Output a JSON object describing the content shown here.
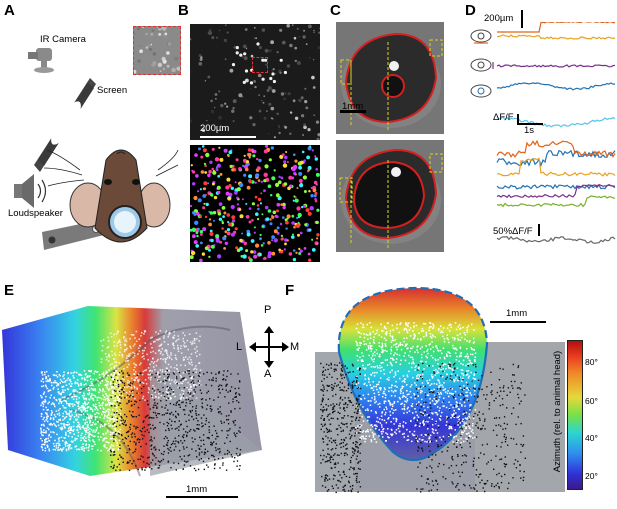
{
  "panels": {
    "A": "A",
    "B": "B",
    "C": "C",
    "D": "D",
    "E": "E",
    "F": "F"
  },
  "panel_a": {
    "ir_camera": "IR Camera",
    "screen": "Screen",
    "loudspeaker": "Loudspeaker"
  },
  "panel_b": {
    "scale": "200µm"
  },
  "panel_c": {
    "scale": "1mm"
  },
  "panel_d": {
    "scale_pos": "200µm",
    "scale_dff": "ΔF/F",
    "scale_time": "1s",
    "scale_50": "50%ΔF/F"
  },
  "panel_e": {
    "scale": "1mm"
  },
  "compass": {
    "p": "P",
    "a": "A",
    "l": "L",
    "m": "M"
  },
  "panel_f": {
    "scale": "1mm"
  },
  "colorbar": {
    "label": "Azimuth (rel. to animal head)",
    "ticks": [
      "80°",
      "60°",
      "40°",
      "20°"
    ]
  },
  "colors": {
    "eye_outline": "#d42020",
    "pupil_fill": "#111111",
    "dashed_box": "#d9d61a",
    "crop_box": "#e03030",
    "f_outline": "#1f6fb8",
    "trace_orange": "#e0631a",
    "trace_yellow": "#e9a21d",
    "trace_purple": "#7a2d8c",
    "trace_blue": "#1f72b5",
    "trace_light_blue": "#5cc2e8",
    "trace_green": "#7ab02a",
    "trace_gray": "#666666"
  }
}
